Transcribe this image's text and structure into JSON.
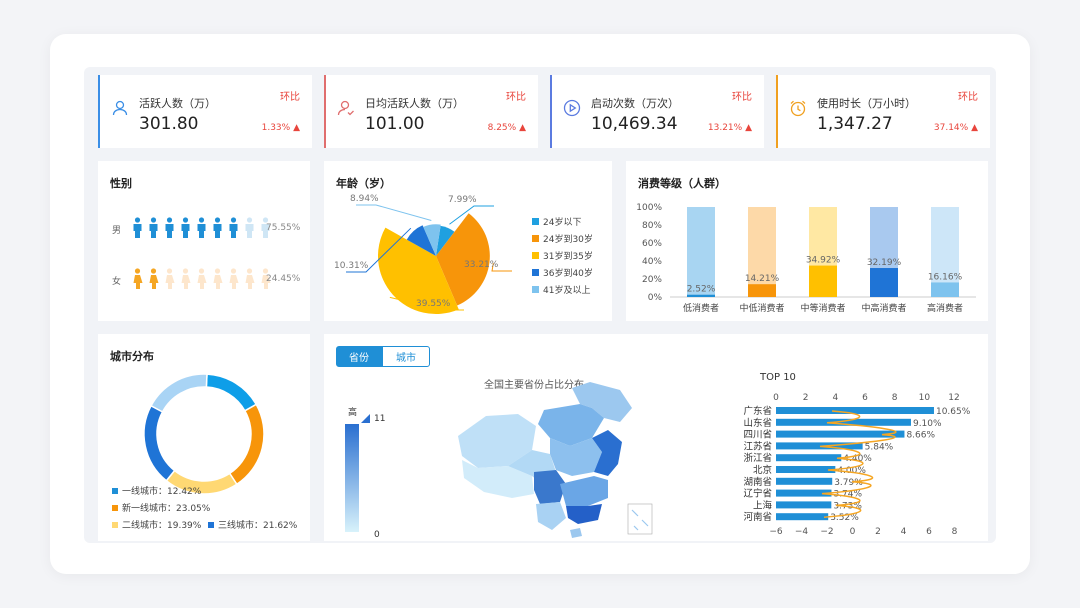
{
  "kpis": [
    {
      "label": "活跃人数（万）",
      "value": "301.80",
      "compare": "环比",
      "change": "1.33%",
      "icon": "user-icon",
      "color": "#3a8ee6"
    },
    {
      "label": "日均活跃人数（万）",
      "value": "101.00",
      "compare": "环比",
      "change": "8.25%",
      "icon": "user-check-icon",
      "color": "#e06e6e"
    },
    {
      "label": "启动次数（万次）",
      "value": "10,469.34",
      "compare": "环比",
      "change": "13.21%",
      "icon": "play-icon",
      "color": "#5b7be0"
    },
    {
      "label": "使用时长（万小时）",
      "value": "1,347.27",
      "compare": "环比",
      "change": "37.14%",
      "icon": "alarm-clock-icon",
      "color": "#f0a020"
    }
  ],
  "gender": {
    "title": "性别",
    "rows": [
      {
        "label": "男",
        "pct": "75.55%",
        "ratio": 0.7555,
        "color": "#1f8fd6",
        "light": "#cfe6f5"
      },
      {
        "label": "女",
        "pct": "24.45%",
        "ratio": 0.2445,
        "color": "#f5a623",
        "light": "#fde6cc"
      }
    ]
  },
  "age": {
    "title": "年龄（岁）",
    "legend": [
      "24岁以下",
      "24岁到30岁",
      "31岁到35岁",
      "36岁到40岁",
      "41岁及以上"
    ],
    "colors": [
      "#1fa0e0",
      "#f7950a",
      "#ffc000",
      "#1f74d6",
      "#7ec3ee"
    ],
    "labels": [
      "7.99%",
      "33.21%",
      "39.55%",
      "10.31%",
      "8.94%"
    ],
    "chart_data": {
      "type": "pie",
      "categories": [
        "24岁以下",
        "24岁到30岁",
        "31岁到35岁",
        "36岁到40岁",
        "41岁及以上"
      ],
      "values": [
        7.99,
        33.21,
        39.55,
        10.31,
        8.94
      ]
    }
  },
  "consume": {
    "title": "消费等级（人群）",
    "yticks": [
      "100%",
      "80%",
      "60%",
      "40%",
      "20%",
      "0%"
    ],
    "categories": [
      "低消费者",
      "中低消费者",
      "中等消费者",
      "中高消费者",
      "高消费者"
    ],
    "labels": [
      "2.52%",
      "14.21%",
      "34.92%",
      "32.19%",
      "16.16%"
    ],
    "colors": [
      "#1f8fd6",
      "#f7950a",
      "#ffc000",
      "#1f74d6",
      "#7ec3ee"
    ],
    "lights": [
      "#a8d5f2",
      "#fdd9a8",
      "#ffe8a3",
      "#a9c9ef",
      "#cde6f8"
    ],
    "chart_data": {
      "type": "bar",
      "categories": [
        "低消费者",
        "中低消费者",
        "中等消费者",
        "中高消费者",
        "高消费者"
      ],
      "values": [
        2.52,
        14.21,
        34.92,
        32.19,
        16.16
      ],
      "ylim": [
        0,
        100
      ]
    }
  },
  "city": {
    "title": "城市分布",
    "legend": [
      {
        "label": "一线城市：12.42%",
        "color": "#1f8fd6"
      },
      {
        "label": "新一线城市：23.05%",
        "color": "#f7950a"
      },
      {
        "label": "二线城市：19.39%",
        "color": "#ffd873"
      },
      {
        "label": "三线城市：21.62%",
        "color": "#1f74d6"
      }
    ],
    "chart_data": {
      "type": "pie",
      "categories": [
        "一线城市",
        "新一线城市",
        "二线城市",
        "三线城市"
      ],
      "values": [
        12.42,
        23.05,
        19.39,
        21.62
      ]
    }
  },
  "map": {
    "tabs": [
      "省份",
      "城市"
    ],
    "active_tab": 0,
    "title": "全国主要省份占比分布",
    "scale_high": "高",
    "scale_max": "11",
    "scale_min": "0"
  },
  "top10": {
    "title": "TOP 10",
    "top_ticks": [
      "0",
      "2",
      "4",
      "6",
      "8",
      "10",
      "12"
    ],
    "bottom_ticks": [
      "−6",
      "−4",
      "−2",
      "0",
      "2",
      "4",
      "6",
      "8"
    ],
    "chart_data": {
      "type": "bar",
      "categories": [
        "广东省",
        "山东省",
        "四川省",
        "江苏省",
        "浙江省",
        "北京",
        "湖南省",
        "辽宁省",
        "上海",
        "河南省"
      ],
      "values": [
        10.65,
        9.1,
        8.66,
        5.84,
        4.4,
        4.0,
        3.79,
        3.74,
        3.73,
        3.52
      ],
      "value_labels": [
        "10.65%",
        "9.10%",
        "8.66%",
        "5.84%",
        "4.40%",
        "4.00%",
        "3.79%",
        "3.74%",
        "3.73%",
        "3.52%"
      ],
      "xlim": [
        0,
        12
      ]
    }
  }
}
